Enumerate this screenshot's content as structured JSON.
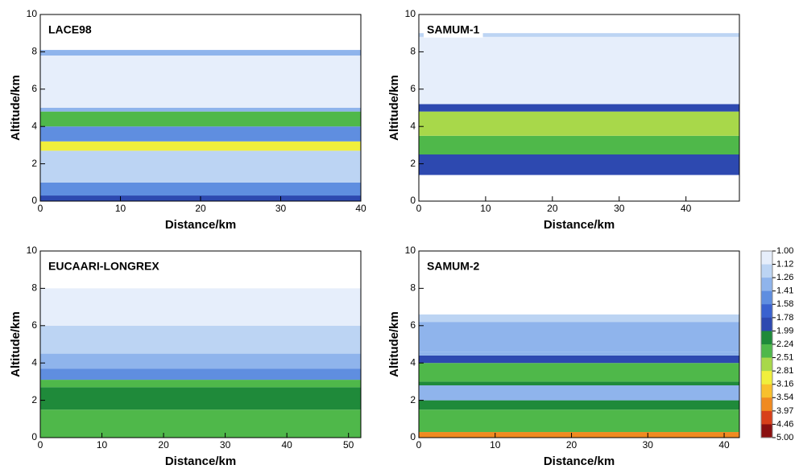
{
  "chart_data": [
    {
      "type": "heatmap",
      "title": "LACE98",
      "xlabel": "Distance/km",
      "ylabel": "Altitude/km",
      "xlim": [
        0,
        40
      ],
      "ylim": [
        0,
        10
      ],
      "xticks": [
        0,
        10,
        20,
        30,
        40
      ],
      "yticks": [
        0,
        2,
        4,
        6,
        8,
        10
      ],
      "layers": {
        "bottom": [
          0,
          0.3,
          1.0,
          2.7,
          3.2,
          4.0,
          4.8,
          5.0,
          7.8
        ],
        "top": [
          0.3,
          1.0,
          2.7,
          3.2,
          4.0,
          4.8,
          5.0,
          7.8,
          8.1
        ],
        "values": [
          1.9,
          1.5,
          1.15,
          2.9,
          1.5,
          2.3,
          1.4,
          1.1,
          1.3
        ]
      }
    },
    {
      "type": "heatmap",
      "title": "SAMUM-1",
      "xlabel": "Distance/km",
      "ylabel": "Altitude/km",
      "xlim": [
        0,
        48
      ],
      "ylim": [
        0,
        10
      ],
      "xticks": [
        0,
        10,
        20,
        30,
        40
      ],
      "yticks": [
        0,
        2,
        4,
        6,
        8,
        10
      ],
      "layers": {
        "bottom": [
          1.4,
          2.5,
          3.5,
          4.8,
          5.2,
          8.8
        ],
        "top": [
          2.5,
          3.5,
          4.8,
          5.2,
          8.8,
          9.0
        ],
        "values": [
          1.9,
          2.3,
          2.8,
          1.8,
          1.08,
          1.12
        ]
      }
    },
    {
      "type": "heatmap",
      "title": "EUCAARI-LONGREX",
      "xlabel": "Distance/km",
      "ylabel": "Altitude/km",
      "xlim": [
        0,
        52
      ],
      "ylim": [
        0,
        10
      ],
      "xticks": [
        0,
        10,
        20,
        30,
        40,
        50
      ],
      "yticks": [
        0,
        2,
        4,
        6,
        8,
        10
      ],
      "layers": {
        "bottom": [
          0,
          1.5,
          2.7,
          3.1,
          3.7,
          4.5,
          6.0
        ],
        "top": [
          1.5,
          2.7,
          3.1,
          3.7,
          4.5,
          6.0,
          8.0
        ],
        "values": [
          2.4,
          2.0,
          2.3,
          1.41,
          1.26,
          1.12,
          1.05
        ]
      }
    },
    {
      "type": "heatmap",
      "title": "SAMUM-2",
      "xlabel": "Distance/km",
      "ylabel": "Altitude/km",
      "xlim": [
        0,
        42
      ],
      "ylim": [
        0,
        10
      ],
      "xticks": [
        0,
        10,
        20,
        30,
        40
      ],
      "yticks": [
        0,
        2,
        4,
        6,
        8,
        10
      ],
      "layers": {
        "bottom": [
          0,
          0.3,
          1.5,
          2.0,
          2.8,
          3.0,
          4.0,
          4.4,
          4.6,
          6.2
        ],
        "top": [
          0.3,
          1.5,
          2.0,
          2.8,
          3.0,
          4.0,
          4.4,
          4.6,
          6.2,
          6.6
        ],
        "values": [
          3.8,
          2.5,
          2.0,
          1.4,
          2.0,
          2.5,
          1.9,
          1.4,
          1.3,
          1.12
        ]
      }
    }
  ],
  "colorbar": {
    "ticks": [
      {
        "value": 1.0,
        "label": "1.00"
      },
      {
        "value": 1.12,
        "label": "1.12"
      },
      {
        "value": 1.26,
        "label": "1.26"
      },
      {
        "value": 1.41,
        "label": "1.41"
      },
      {
        "value": 1.58,
        "label": "1.58"
      },
      {
        "value": 1.78,
        "label": "1.78"
      },
      {
        "value": 1.99,
        "label": "1.99"
      },
      {
        "value": 2.24,
        "label": "2.24"
      },
      {
        "value": 2.51,
        "label": "2.51"
      },
      {
        "value": 2.81,
        "label": "2.81"
      },
      {
        "value": 3.16,
        "label": "3.16"
      },
      {
        "value": 3.54,
        "label": "3.54"
      },
      {
        "value": 3.97,
        "label": "3.97"
      },
      {
        "value": 4.46,
        "label": "4.46"
      },
      {
        "value": 5.0,
        "label": "5.00"
      }
    ],
    "colors": [
      "#e6eefb",
      "#bcd4f3",
      "#8fb4ec",
      "#5f8ee0",
      "#3a62cf",
      "#2d49b0",
      "#1f8a3a",
      "#4fb84a",
      "#a8d84a",
      "#f0ef3c",
      "#f8c02c",
      "#f08a20",
      "#d8401a",
      "#8a1010"
    ]
  }
}
